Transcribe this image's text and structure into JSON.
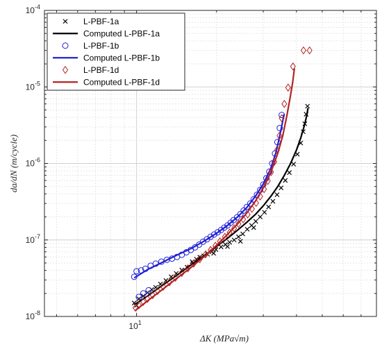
{
  "chart_data": {
    "type": "scatter",
    "xscale": "log",
    "yscale": "log",
    "xlim": [
      4.5,
      80
    ],
    "ylim": [
      1e-08,
      0.0001
    ],
    "grid": true,
    "legend_position": "top-left",
    "xlabel": "ΔK (MPa√m)",
    "ylabel": "da/dN (m/cycle)",
    "x_tick_labels": [
      {
        "value": 10,
        "base": "10",
        "exp": "1"
      }
    ],
    "y_tick_labels": [
      {
        "value": 1e-08,
        "base": "10",
        "exp": "-8"
      },
      {
        "value": 1e-07,
        "base": "10",
        "exp": "-7"
      },
      {
        "value": 1e-06,
        "base": "10",
        "exp": "-6"
      },
      {
        "value": 1e-05,
        "base": "10",
        "exp": "-5"
      },
      {
        "value": 0.0001,
        "base": "10",
        "exp": "-4"
      }
    ],
    "series": [
      {
        "name": "L-PBF-1a",
        "kind": "markers",
        "marker": "x",
        "color": "#000000",
        "points": [
          [
            9.8,
            1.5e-08
          ],
          [
            10.0,
            1.4e-08
          ],
          [
            10.2,
            1.7e-08
          ],
          [
            10.6,
            1.85e-08
          ],
          [
            11.0,
            2.05e-08
          ],
          [
            11.4,
            2.25e-08
          ],
          [
            11.8,
            2.4e-08
          ],
          [
            12.3,
            2.65e-08
          ],
          [
            12.9,
            2.95e-08
          ],
          [
            13.5,
            3.3e-08
          ],
          [
            14.1,
            3.65e-08
          ],
          [
            14.8,
            4.05e-08
          ],
          [
            15.5,
            4.4e-08
          ],
          [
            16.3,
            4.95e-08
          ],
          [
            16.8,
            5.6e-08
          ],
          [
            17.3,
            5.95e-08
          ],
          [
            17.9,
            6.2e-08
          ],
          [
            18.5,
            6.5e-08
          ],
          [
            19.2,
            7e-08
          ],
          [
            19.9,
            7.5e-08
          ],
          [
            20.8,
            8.1e-08
          ],
          [
            21.6,
            8.7e-08
          ],
          [
            22.4,
            9.3e-08
          ],
          [
            23.3,
            1e-07
          ],
          [
            24.2,
            1.1e-07
          ],
          [
            25.1,
            1.2e-07
          ],
          [
            26.1,
            1.38e-07
          ],
          [
            27.1,
            1.55e-07
          ],
          [
            28.1,
            1.75e-07
          ],
          [
            29.2,
            2e-07
          ],
          [
            30.3,
            2.3e-07
          ],
          [
            31.4,
            2.7e-07
          ],
          [
            32.6,
            3.2e-07
          ],
          [
            33.8,
            3.9e-07
          ],
          [
            35.0,
            4.8e-07
          ],
          [
            36.3,
            6e-07
          ],
          [
            37.6,
            7.6e-07
          ],
          [
            39.0,
            9.8e-07
          ],
          [
            40.3,
            1.32e-06
          ],
          [
            41.5,
            1.85e-06
          ],
          [
            42.4,
            2.6e-06
          ],
          [
            43.0,
            3.3e-06
          ],
          [
            43.5,
            4.4e-06
          ],
          [
            44.0,
            5.6e-06
          ],
          [
            16.2,
            5.2e-08
          ],
          [
            19.5,
            6.7e-08
          ],
          [
            22.0,
            8.2e-08
          ],
          [
            24.6,
            9.6e-08
          ],
          [
            27.6,
            1.45e-07
          ]
        ]
      },
      {
        "name": "Computed L-PBF-1a",
        "kind": "line",
        "color": "#000000",
        "points": [
          [
            9.8,
            1.42e-08
          ],
          [
            11.0,
            1.85e-08
          ],
          [
            12.5,
            2.55e-08
          ],
          [
            14.0,
            3.35e-08
          ],
          [
            16.0,
            4.7e-08
          ],
          [
            18.0,
            6.25e-08
          ],
          [
            20.0,
            8.2e-08
          ],
          [
            22.0,
            1.05e-07
          ],
          [
            24.0,
            1.34e-07
          ],
          [
            26.0,
            1.7e-07
          ],
          [
            28.0,
            2.15e-07
          ],
          [
            30.0,
            2.8e-07
          ],
          [
            32.0,
            3.7e-07
          ],
          [
            34.0,
            5e-07
          ],
          [
            36.0,
            7e-07
          ],
          [
            38.0,
            1e-06
          ],
          [
            40.0,
            1.5e-06
          ],
          [
            41.5,
            2.15e-06
          ],
          [
            42.8,
            3.1e-06
          ],
          [
            43.7,
            4.2e-06
          ],
          [
            44.2,
            5.3e-06
          ]
        ]
      },
      {
        "name": "L-PBF-1b",
        "kind": "markers",
        "marker": "o",
        "color": "#1f1fd6",
        "points": [
          [
            9.8,
            3.3e-08
          ],
          [
            10.0,
            3.9e-08
          ],
          [
            10.4,
            4e-08
          ],
          [
            10.8,
            4.2e-08
          ],
          [
            11.3,
            4.6e-08
          ],
          [
            11.8,
            4.9e-08
          ],
          [
            12.4,
            5.2e-08
          ],
          [
            13.0,
            5.5e-08
          ],
          [
            13.6,
            5.7e-08
          ],
          [
            14.2,
            6e-08
          ],
          [
            14.8,
            6.4e-08
          ],
          [
            15.4,
            6.9e-08
          ],
          [
            16.0,
            7.4e-08
          ],
          [
            16.6,
            8e-08
          ],
          [
            17.2,
            8.7e-08
          ],
          [
            17.8,
            9.5e-08
          ],
          [
            18.4,
            1.02e-07
          ],
          [
            19.0,
            1.1e-07
          ],
          [
            19.6,
            1.18e-07
          ],
          [
            20.2,
            1.26e-07
          ],
          [
            20.8,
            1.35e-07
          ],
          [
            21.4,
            1.45e-07
          ],
          [
            22.0,
            1.55e-07
          ],
          [
            22.6,
            1.68e-07
          ],
          [
            23.2,
            1.82e-07
          ],
          [
            23.9,
            1.98e-07
          ],
          [
            24.6,
            2.18e-07
          ],
          [
            25.3,
            2.42e-07
          ],
          [
            26.0,
            2.7e-07
          ],
          [
            26.8,
            3e-07
          ],
          [
            27.6,
            3.4e-07
          ],
          [
            28.4,
            3.9e-07
          ],
          [
            29.2,
            4.5e-07
          ],
          [
            30.0,
            5.3e-07
          ],
          [
            30.8,
            6.4e-07
          ],
          [
            31.6,
            7.8e-07
          ],
          [
            32.4,
            1e-06
          ],
          [
            33.2,
            1.35e-06
          ],
          [
            33.9,
            1.9e-06
          ],
          [
            34.6,
            2.9e-06
          ],
          [
            35.2,
            4.3e-06
          ],
          [
            10.2,
            1.8e-08
          ],
          [
            10.6,
            2e-08
          ],
          [
            11.1,
            2.2e-08
          ]
        ]
      },
      {
        "name": "Computed L-PBF-1b",
        "kind": "line",
        "color": "#1f1fd6",
        "points": [
          [
            9.8,
            3.2e-08
          ],
          [
            11.0,
            4.1e-08
          ],
          [
            12.5,
            5.1e-08
          ],
          [
            14.0,
            6.2e-08
          ],
          [
            16.0,
            7.7e-08
          ],
          [
            18.0,
            9.7e-08
          ],
          [
            20.0,
            1.22e-07
          ],
          [
            22.0,
            1.55e-07
          ],
          [
            24.0,
            2e-07
          ],
          [
            26.0,
            2.65e-07
          ],
          [
            28.0,
            3.7e-07
          ],
          [
            30.0,
            5.4e-07
          ],
          [
            32.0,
            8.6e-07
          ],
          [
            33.5,
            1.4e-06
          ],
          [
            34.6,
            2.3e-06
          ],
          [
            35.4,
            3.4e-06
          ],
          [
            35.9,
            4.4e-06
          ]
        ]
      },
      {
        "name": "L-PBF-1d",
        "kind": "markers",
        "marker": "diamond",
        "color": "#b22222",
        "points": [
          [
            9.9,
            1.3e-08
          ],
          [
            10.2,
            1.4e-08
          ],
          [
            10.6,
            1.55e-08
          ],
          [
            11.0,
            1.7e-08
          ],
          [
            11.5,
            1.9e-08
          ],
          [
            12.0,
            2.15e-08
          ],
          [
            12.6,
            2.45e-08
          ],
          [
            13.3,
            2.8e-08
          ],
          [
            14.0,
            3.2e-08
          ],
          [
            14.8,
            3.7e-08
          ],
          [
            15.6,
            4.25e-08
          ],
          [
            16.4,
            4.9e-08
          ],
          [
            17.3,
            5.6e-08
          ],
          [
            18.2,
            6.5e-08
          ],
          [
            19.0,
            7.4e-08
          ],
          [
            19.8,
            8.4e-08
          ],
          [
            20.6,
            9.6e-08
          ],
          [
            21.5,
            1.1e-07
          ],
          [
            22.4,
            1.25e-07
          ],
          [
            23.3,
            1.42e-07
          ],
          [
            24.2,
            1.62e-07
          ],
          [
            25.2,
            1.86e-07
          ],
          [
            26.2,
            2.15e-07
          ],
          [
            27.2,
            2.55e-07
          ],
          [
            28.2,
            3.05e-07
          ],
          [
            29.2,
            3.7e-07
          ],
          [
            30.2,
            4.6e-07
          ],
          [
            31.2,
            5.9e-07
          ],
          [
            32.1,
            7.7e-07
          ],
          [
            33.0,
            1.05e-06
          ],
          [
            33.8,
            1.5e-06
          ],
          [
            34.5,
            2.3e-06
          ],
          [
            35.2,
            3.9e-06
          ],
          [
            36.0,
            6e-06
          ],
          [
            37.2,
            9.8e-06
          ],
          [
            38.8,
            1.85e-05
          ],
          [
            42.5,
            3e-05
          ],
          [
            44.8,
            3e-05
          ]
        ]
      },
      {
        "name": "Computed L-PBF-1d",
        "kind": "line",
        "color": "#b22222",
        "points": [
          [
            9.9,
            1.2e-08
          ],
          [
            11.0,
            1.6e-08
          ],
          [
            12.5,
            2.25e-08
          ],
          [
            14.0,
            3.05e-08
          ],
          [
            16.0,
            4.35e-08
          ],
          [
            18.0,
            6.1e-08
          ],
          [
            20.0,
            8.5e-08
          ],
          [
            22.0,
            1.18e-07
          ],
          [
            24.0,
            1.62e-07
          ],
          [
            26.0,
            2.25e-07
          ],
          [
            28.0,
            3.2e-07
          ],
          [
            30.0,
            4.8e-07
          ],
          [
            32.0,
            7.6e-07
          ],
          [
            34.0,
            1.35e-06
          ],
          [
            35.5,
            2.3e-06
          ],
          [
            36.8,
            4.2e-06
          ],
          [
            37.9,
            7.4e-06
          ],
          [
            38.7,
            1.15e-05
          ],
          [
            39.3,
            1.75e-05
          ]
        ]
      }
    ]
  }
}
